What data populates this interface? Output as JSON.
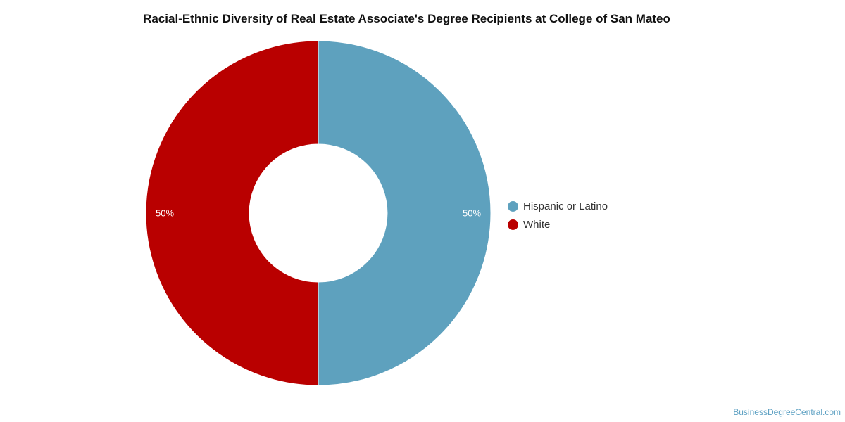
{
  "chart_data": {
    "type": "pie",
    "title": "Racial-Ethnic Diversity of Real Estate Associate's Degree Recipients at College of San Mateo",
    "donut": true,
    "slices": [
      {
        "label": "Hispanic or Latino",
        "value": 50,
        "display": "50%",
        "color": "#5ea1be"
      },
      {
        "label": "White",
        "value": 50,
        "display": "50%",
        "color": "#b90000"
      }
    ],
    "legend_position": "right"
  },
  "watermark": "BusinessDegreeCentral.com"
}
